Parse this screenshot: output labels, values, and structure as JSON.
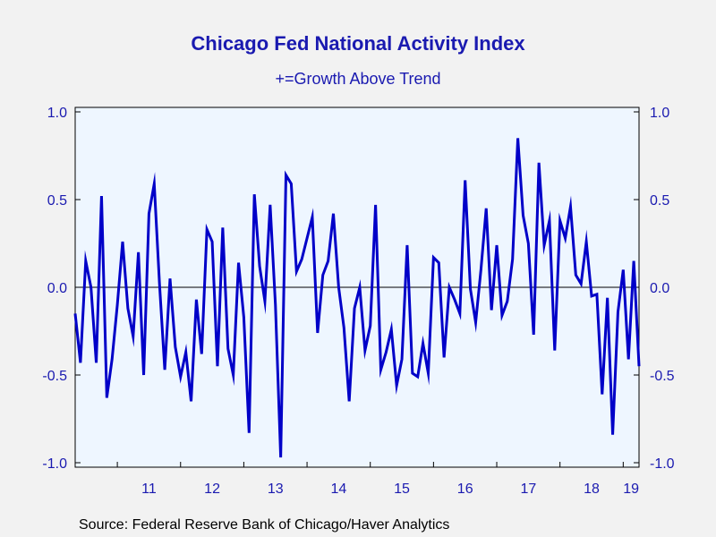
{
  "chart_data": {
    "type": "line",
    "title": "Chicago Fed National Activity Index",
    "subtitle": "+=Growth Above Trend",
    "source": "Source:  Federal Reserve Bank of Chicago/Haver Analytics",
    "ylim": [
      -1.0,
      1.0
    ],
    "yticks": [
      "-1.0",
      "-0.5",
      "0.0",
      "0.5",
      "1.0"
    ],
    "yticks_right": [
      "-1.0",
      "-0.5",
      "0.0",
      "0.5",
      "1.0"
    ],
    "xticks": [
      "11",
      "12",
      "13",
      "14",
      "15",
      "16",
      "17",
      "18",
      "19"
    ],
    "xlim": [
      "2010-05",
      "2019-04"
    ],
    "grid": false,
    "zero_line": true,
    "colors": {
      "line": "#0000c8",
      "plot_bg": "#eef6ff",
      "page_bg": "#f2f2f2",
      "text": "#1a1ab0"
    },
    "series": [
      {
        "start": "2010-05",
        "frequency": "monthly",
        "values": [
          -0.15,
          -0.43,
          0.15,
          0.0,
          -0.43,
          0.52,
          -0.63,
          -0.41,
          -0.1,
          0.26,
          -0.12,
          -0.28,
          0.2,
          -0.5,
          0.42,
          0.59,
          0.02,
          -0.47,
          0.05,
          -0.34,
          -0.51,
          -0.37,
          -0.65,
          -0.07,
          -0.38,
          0.33,
          0.26,
          -0.45,
          0.34,
          -0.35,
          -0.5,
          0.14,
          -0.17,
          -0.83,
          0.53,
          0.12,
          -0.08,
          0.47,
          -0.1,
          -0.97,
          0.64,
          0.59,
          0.09,
          0.16,
          0.28,
          0.4,
          -0.26,
          0.07,
          0.15,
          0.42,
          0.0,
          -0.23,
          -0.65,
          -0.12,
          0.0,
          -0.36,
          -0.22,
          0.47,
          -0.47,
          -0.37,
          -0.24,
          -0.56,
          -0.41,
          0.24,
          -0.49,
          -0.51,
          -0.32,
          -0.49,
          0.17,
          0.14,
          -0.4,
          0.0,
          -0.07,
          -0.15,
          0.61,
          -0.01,
          -0.2,
          0.1,
          0.45,
          -0.13,
          0.24,
          -0.16,
          -0.08,
          0.16,
          0.85,
          0.41,
          0.25,
          -0.27,
          0.71,
          0.24,
          0.38,
          -0.36,
          0.38,
          0.28,
          0.46,
          0.07,
          0.02,
          0.26,
          -0.05,
          -0.04,
          -0.61,
          -0.06,
          -0.84,
          -0.14,
          0.1,
          -0.41,
          0.15,
          -0.45
        ]
      }
    ]
  }
}
